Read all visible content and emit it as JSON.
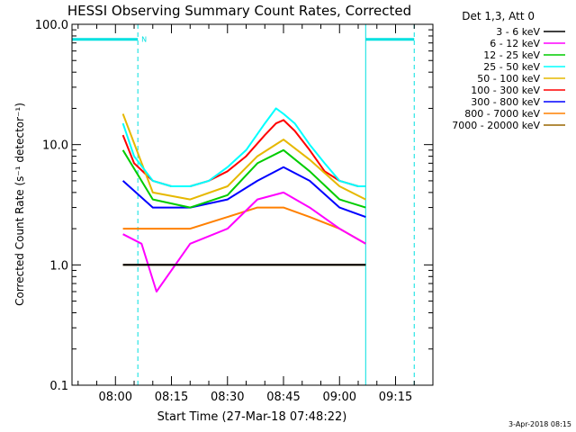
{
  "chart_data": {
    "type": "line",
    "title": "HESSI Observing Summary Count Rates, Corrected",
    "xlabel": "Start Time (27-Mar-18 07:48:22)",
    "ylabel": "Corrected Count Rate (s⁻¹ detector⁻¹)",
    "yscale": "log",
    "ylim": [
      0.1,
      100
    ],
    "xlim": [
      "07:48:22",
      "09:25:00"
    ],
    "x_ticks": [
      "08:00",
      "08:15",
      "08:30",
      "08:45",
      "09:00",
      "09:15"
    ],
    "y_ticks": [
      "0.1",
      "1.0",
      "10.0",
      "100.0"
    ],
    "legend_title": "Det 1,3, Att 0",
    "legend_position": "right",
    "date_stamp": "3-Apr-2018 08:15",
    "night_marker": "N",
    "series": [
      {
        "name": "3 - 6 keV",
        "color": "#000000",
        "x": [
          "08:02",
          "08:10",
          "08:20",
          "08:30",
          "08:38",
          "08:45",
          "08:52",
          "09:00",
          "09:07"
        ],
        "values": [
          1.0,
          1.0,
          1.0,
          1.0,
          1.0,
          1.0,
          1.0,
          1.0,
          1.0
        ]
      },
      {
        "name": "6 - 12 keV",
        "color": "#ff00ff",
        "x": [
          "08:02",
          "08:07",
          "08:11",
          "08:20",
          "08:30",
          "08:38",
          "08:45",
          "08:52",
          "09:00",
          "09:07"
        ],
        "values": [
          1.8,
          1.5,
          0.6,
          1.5,
          2.0,
          3.5,
          4.0,
          3.0,
          2.0,
          1.5
        ]
      },
      {
        "name": "12 - 25 keV",
        "color": "#00cc00",
        "x": [
          "08:02",
          "08:10",
          "08:20",
          "08:30",
          "08:38",
          "08:45",
          "08:52",
          "09:00",
          "09:07"
        ],
        "values": [
          9.0,
          3.5,
          3.0,
          3.8,
          7.0,
          9.0,
          6.0,
          3.5,
          3.0
        ]
      },
      {
        "name": "25 - 50 keV",
        "color": "#00ffff",
        "x": [
          "08:02",
          "08:05",
          "08:10",
          "08:15",
          "08:20",
          "08:25",
          "08:30",
          "08:35",
          "08:40",
          "08:43",
          "08:45",
          "08:48",
          "08:52",
          "08:56",
          "09:00",
          "09:05",
          "09:07"
        ],
        "values": [
          15,
          8,
          5,
          4.5,
          4.5,
          5,
          6.5,
          9,
          15,
          20,
          18,
          15,
          10,
          7,
          5,
          4.5,
          4.5
        ]
      },
      {
        "name": "50 - 100 keV",
        "color": "#e6b800",
        "x": [
          "08:02",
          "08:10",
          "08:20",
          "08:30",
          "08:38",
          "08:45",
          "08:52",
          "09:00",
          "09:07"
        ],
        "values": [
          18,
          4.0,
          3.5,
          4.5,
          8.0,
          11,
          7.5,
          4.5,
          3.5
        ]
      },
      {
        "name": "100 - 300 keV",
        "color": "#ff0000",
        "x": [
          "08:02",
          "08:05",
          "08:10",
          "08:15",
          "08:20",
          "08:25",
          "08:30",
          "08:35",
          "08:40",
          "08:43",
          "08:45",
          "08:48",
          "08:52",
          "08:56",
          "09:00",
          "09:05",
          "09:07"
        ],
        "values": [
          12,
          7,
          5,
          4.5,
          4.5,
          5,
          6,
          8,
          12,
          15,
          16,
          13,
          9,
          6,
          5,
          4.5,
          4.5
        ]
      },
      {
        "name": "300 - 800 keV",
        "color": "#0000ff",
        "x": [
          "08:02",
          "08:10",
          "08:20",
          "08:30",
          "08:38",
          "08:45",
          "08:52",
          "09:00",
          "09:07"
        ],
        "values": [
          5.0,
          3.0,
          3.0,
          3.5,
          5.0,
          6.5,
          5.0,
          3.0,
          2.5
        ]
      },
      {
        "name": "800 - 7000 keV",
        "color": "#ff8000",
        "x": [
          "08:02",
          "08:10",
          "08:20",
          "08:30",
          "08:38",
          "08:45",
          "08:52",
          "09:00",
          "09:07"
        ],
        "values": [
          2.0,
          2.0,
          2.0,
          2.5,
          3.0,
          3.0,
          2.5,
          2.0,
          1.5
        ]
      },
      {
        "name": "7000 - 20000 keV",
        "color": "#996600",
        "x": [
          "08:02",
          "08:10",
          "08:20",
          "08:30",
          "08:38",
          "08:45",
          "08:52",
          "09:00",
          "09:07"
        ],
        "values": [
          1.0,
          1.0,
          1.0,
          1.0,
          1.0,
          1.0,
          1.0,
          1.0,
          1.0
        ]
      }
    ],
    "bars": [
      {
        "label": "night",
        "color": "#00e0e0",
        "start": "07:48:22",
        "end": "08:06",
        "value": 75
      },
      {
        "label": "night",
        "color": "#00e0e0",
        "start": "09:07",
        "end": "09:20",
        "value": 75
      }
    ],
    "vlines": [
      {
        "x": "07:48:22",
        "style": "solid",
        "color": "#00e0e0"
      },
      {
        "x": "08:06",
        "style": "dashed",
        "color": "#00e0e0"
      },
      {
        "x": "09:07",
        "style": "solid",
        "color": "#00e0e0"
      },
      {
        "x": "09:20",
        "style": "dashed",
        "color": "#00e0e0"
      }
    ]
  }
}
